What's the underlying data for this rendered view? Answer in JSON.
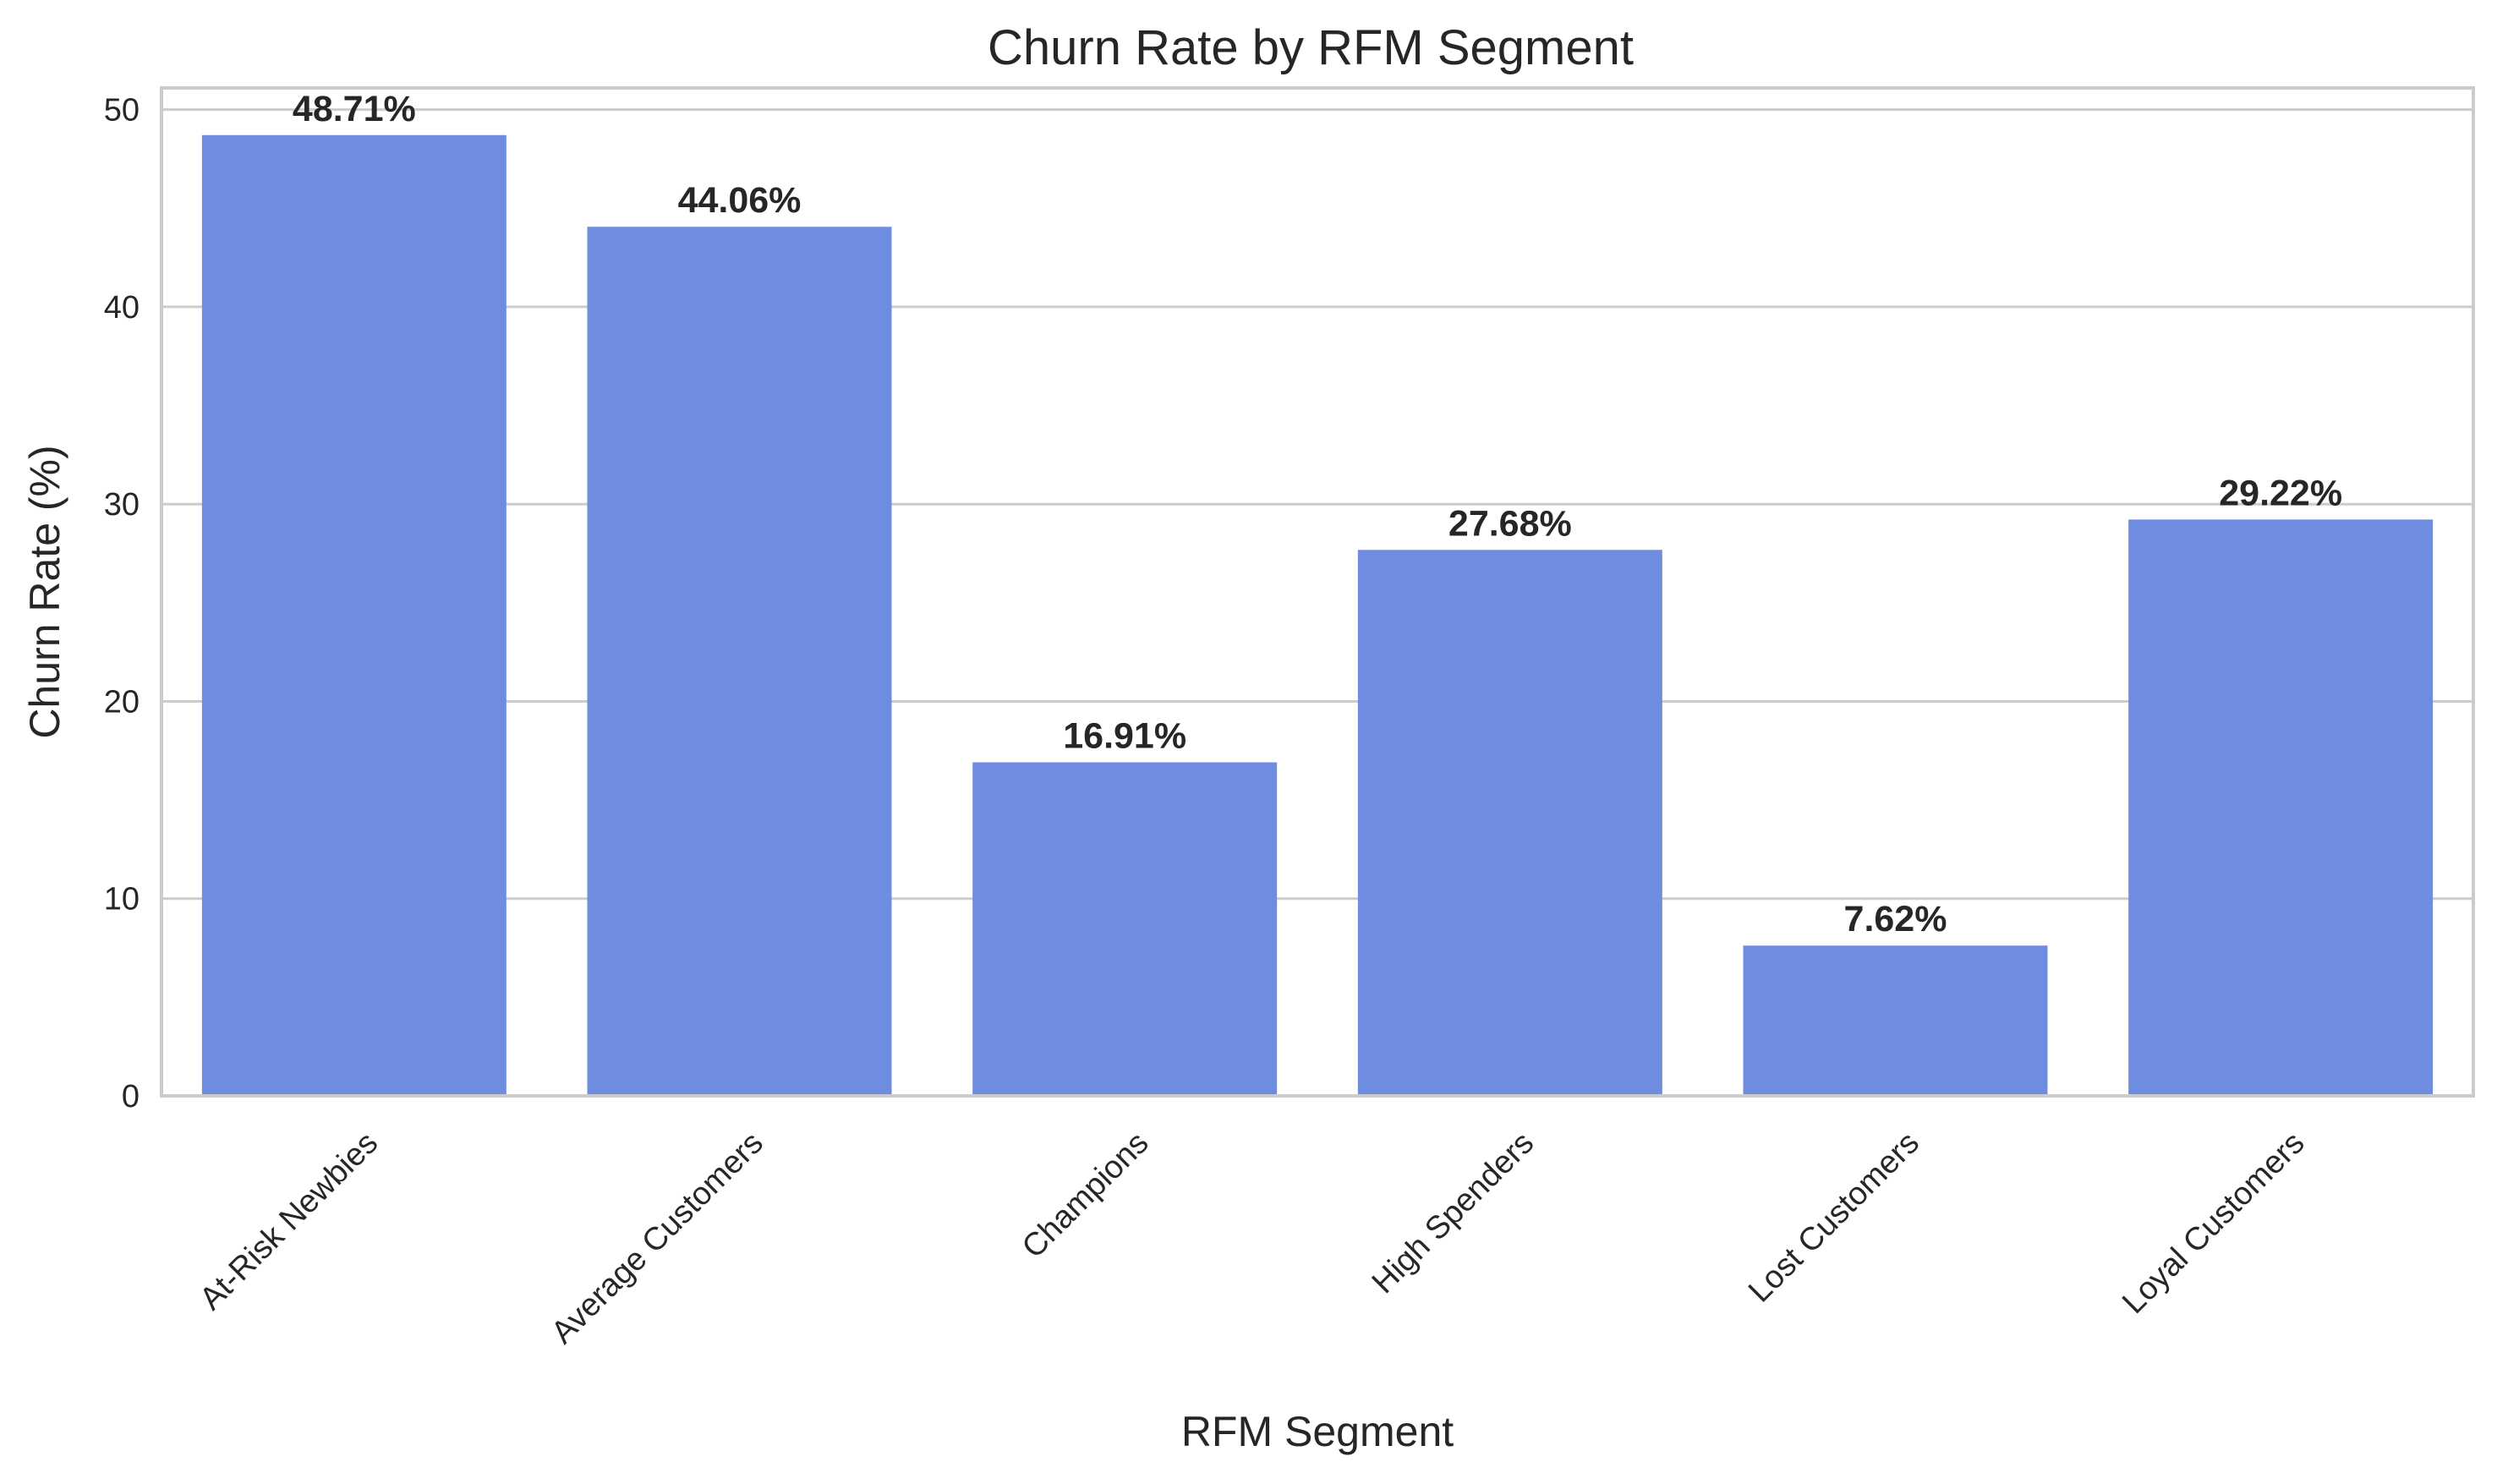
{
  "chart_data": {
    "type": "bar",
    "title": "Churn Rate by RFM Segment",
    "xlabel": "RFM Segment",
    "ylabel": "Churn Rate (%)",
    "categories": [
      "At-Risk Newbies",
      "Average Customers",
      "Champions",
      "High Spenders",
      "Lost Customers",
      "Loyal Customers"
    ],
    "values": [
      48.71,
      44.06,
      16.91,
      27.68,
      7.62,
      29.22
    ],
    "data_labels": [
      "48.71%",
      "44.06%",
      "16.91%",
      "27.68%",
      "7.62%",
      "29.22%"
    ],
    "ylim": [
      0,
      51.1
    ],
    "yticks": [
      0,
      10,
      20,
      30,
      40,
      50
    ],
    "grid": true,
    "bar_color": "#6f8de0",
    "grid_color": "#cccccc"
  }
}
